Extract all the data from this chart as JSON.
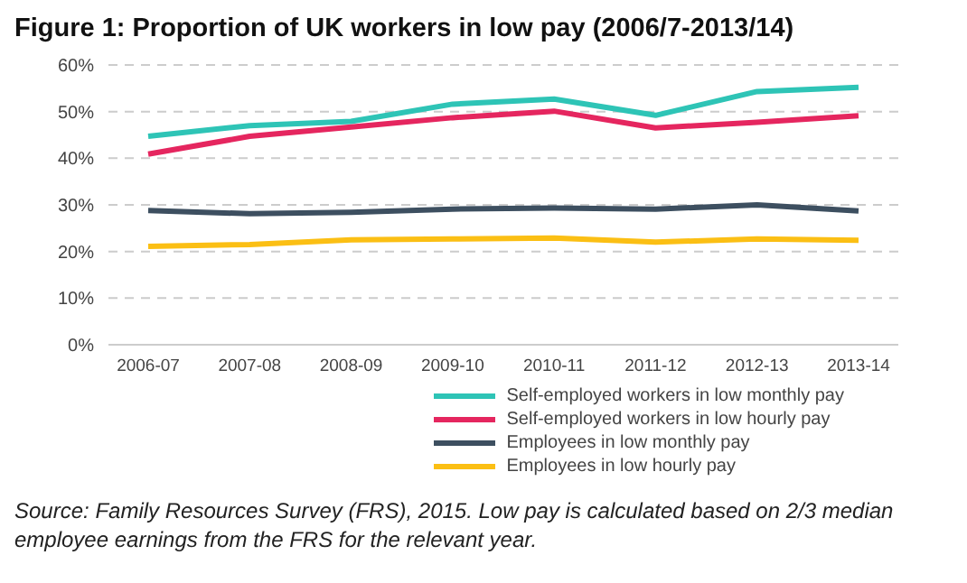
{
  "chart_data": {
    "type": "line",
    "title": "Figure 1: Proportion of UK workers in low pay (2006/7-2013/14)",
    "categories": [
      "2006-07",
      "2007-08",
      "2008-09",
      "2009-10",
      "2010-11",
      "2011-12",
      "2012-13",
      "2013-14"
    ],
    "series": [
      {
        "name": "Self-employed workers in low monthly pay",
        "color": "#2ec4b6",
        "values": [
          44.7,
          47,
          47.9,
          51.6,
          52.7,
          49.2,
          54.3,
          55.2
        ]
      },
      {
        "name": "Self-employed workers in low hourly pay",
        "color": "#e5265f",
        "values": [
          40.9,
          44.7,
          46.7,
          48.7,
          50.1,
          46.5,
          47.7,
          49.1
        ]
      },
      {
        "name": "Employees in low monthly pay",
        "color": "#3d4f60",
        "values": [
          28.8,
          28.1,
          28.4,
          29.1,
          29.3,
          29.1,
          30,
          28.7
        ]
      },
      {
        "name": "Employees in low hourly pay",
        "color": "#fbbf14",
        "values": [
          21.1,
          21.5,
          22.5,
          22.7,
          22.9,
          22,
          22.7,
          22.4
        ]
      }
    ],
    "ylim": [
      0,
      60
    ],
    "yticks": [
      {
        "value": 0,
        "label": "0%"
      },
      {
        "value": 10,
        "label": "10%"
      },
      {
        "value": 20,
        "label": "20%"
      },
      {
        "value": 30,
        "label": "30%"
      },
      {
        "value": 40,
        "label": "40%"
      },
      {
        "value": 50,
        "label": "50%"
      },
      {
        "value": 60,
        "label": "60%"
      }
    ],
    "grid": "y",
    "legend": "bottom right",
    "marker": "none",
    "line_style": "solid",
    "annotations": [
      "Source: Family Resources Survey (FRS), 2015. Low pay is calculated based on 2/3 median employee earnings from the FRS for the relevant year."
    ]
  }
}
